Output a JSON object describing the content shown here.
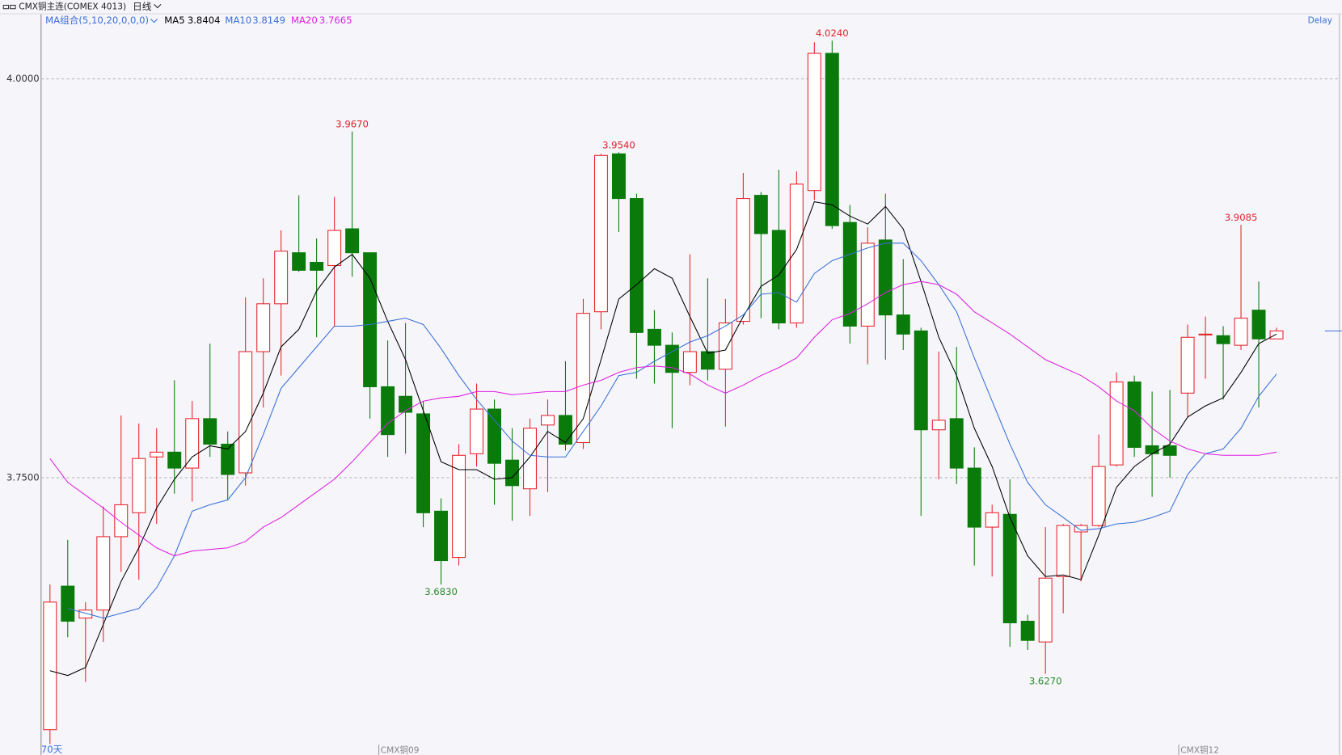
{
  "chart_data": {
    "type": "candlestick",
    "title": "CMX铜主连(COMEX 4013)",
    "period": "日线",
    "status": "Delay",
    "indicator_label": "MA组合(5,10,20,0,0,0)",
    "count_label": "70天",
    "categories": [
      null,
      null,
      null,
      null,
      null,
      null,
      null,
      null,
      null,
      null,
      null,
      null,
      null,
      null,
      null,
      null,
      null,
      null,
      null,
      "CMX铜09",
      null,
      null,
      null,
      null,
      null,
      null,
      null,
      null,
      null,
      null,
      null,
      null,
      null,
      null,
      null,
      null,
      null,
      null,
      null,
      null,
      null,
      null,
      null,
      null,
      null,
      null,
      null,
      null,
      null,
      null,
      null,
      null,
      null,
      null,
      null,
      null,
      null,
      null,
      null,
      null,
      null,
      null,
      null,
      null,
      "CMX铜12",
      null,
      null,
      null,
      null,
      null
    ],
    "open": [
      3.592,
      3.682,
      3.662,
      3.667,
      3.713,
      3.728,
      3.763,
      3.766,
      3.756,
      3.787,
      3.771,
      3.753,
      3.829,
      3.859,
      3.891,
      3.885,
      3.883,
      3.906,
      3.891,
      3.807,
      3.801,
      3.79,
      3.729,
      3.7,
      3.765,
      3.793,
      3.761,
      3.743,
      3.783,
      3.789,
      3.772,
      3.854,
      3.953,
      3.925,
      3.843,
      3.833,
      3.816,
      3.829,
      3.818,
      3.848,
      3.927,
      3.905,
      3.847,
      3.93,
      4.016,
      3.91,
      3.845,
      3.899,
      3.852,
      3.842,
      3.78,
      3.787,
      3.756,
      3.719,
      3.727,
      3.66,
      3.647,
      3.688,
      3.716,
      3.72,
      3.758,
      3.81,
      3.77,
      3.77,
      3.803,
      3.84,
      3.839,
      3.833,
      3.855,
      3.837
    ],
    "high": [
      3.683,
      3.711,
      3.672,
      3.732,
      3.789,
      3.784,
      3.781,
      3.811,
      3.798,
      3.834,
      3.779,
      3.863,
      3.875,
      3.905,
      3.927,
      3.9,
      3.926,
      3.967,
      3.891,
      3.836,
      3.847,
      3.798,
      3.737,
      3.771,
      3.809,
      3.799,
      3.781,
      3.787,
      3.799,
      3.823,
      3.862,
      3.953,
      3.954,
      3.928,
      3.855,
      3.841,
      3.89,
      3.875,
      3.862,
      3.941,
      3.929,
      3.943,
      3.942,
      4.023,
      4.024,
      3.921,
      3.907,
      3.928,
      3.887,
      3.844,
      3.829,
      3.832,
      3.769,
      3.733,
      3.749,
      3.664,
      3.719,
      3.721,
      3.721,
      3.777,
      3.816,
      3.814,
      3.804,
      3.805,
      3.846,
      3.851,
      3.845,
      3.9085,
      3.873,
      3.844
    ],
    "low": [
      3.583,
      3.65,
      3.622,
      3.647,
      3.691,
      3.686,
      3.721,
      3.74,
      3.735,
      3.763,
      3.736,
      3.745,
      3.794,
      3.814,
      3.879,
      3.838,
      3.845,
      3.876,
      3.787,
      3.763,
      3.765,
      3.719,
      3.683,
      3.695,
      3.757,
      3.733,
      3.723,
      3.726,
      3.741,
      3.767,
      3.768,
      3.843,
      3.904,
      3.812,
      3.809,
      3.781,
      3.808,
      3.811,
      3.782,
      3.846,
      3.85,
      3.843,
      3.844,
      3.924,
      3.906,
      3.834,
      3.821,
      3.824,
      3.83,
      3.726,
      3.749,
      3.746,
      3.695,
      3.688,
      3.644,
      3.642,
      3.627,
      3.665,
      3.685,
      3.719,
      3.757,
      3.763,
      3.738,
      3.75,
      3.788,
      3.812,
      3.799,
      3.83,
      3.794,
      3.837
    ],
    "close": [
      3.672,
      3.66,
      3.667,
      3.713,
      3.733,
      3.762,
      3.766,
      3.756,
      3.787,
      3.771,
      3.752,
      3.829,
      3.859,
      3.892,
      3.88,
      3.88,
      3.905,
      3.891,
      3.807,
      3.777,
      3.791,
      3.728,
      3.698,
      3.764,
      3.793,
      3.759,
      3.745,
      3.781,
      3.789,
      3.771,
      3.853,
      3.952,
      3.925,
      3.841,
      3.833,
      3.816,
      3.829,
      3.818,
      3.847,
      3.925,
      3.903,
      3.847,
      3.934,
      4.016,
      3.908,
      3.845,
      3.897,
      3.852,
      3.84,
      3.78,
      3.786,
      3.756,
      3.719,
      3.728,
      3.659,
      3.648,
      3.687,
      3.72,
      3.72,
      3.757,
      3.81,
      3.769,
      3.765,
      3.764,
      3.838,
      3.84,
      3.834,
      3.85,
      3.837,
      3.842
    ],
    "up_color": "#e8232b",
    "down_color": "#0a7a0a",
    "series": [
      {
        "name": "MA5",
        "current": 3.8404,
        "color": "#000000",
        "values": [
          3.629,
          3.626,
          3.631,
          3.658,
          3.685,
          3.706,
          3.731,
          3.749,
          3.763,
          3.77,
          3.768,
          3.779,
          3.803,
          3.832,
          3.843,
          3.867,
          3.882,
          3.89,
          3.875,
          3.848,
          3.824,
          3.792,
          3.76,
          3.755,
          3.755,
          3.749,
          3.75,
          3.763,
          3.779,
          3.772,
          3.787,
          3.824,
          3.862,
          3.871,
          3.881,
          3.875,
          3.851,
          3.828,
          3.83,
          3.851,
          3.87,
          3.877,
          3.893,
          3.923,
          3.921,
          3.914,
          3.909,
          3.92,
          3.906,
          3.873,
          3.838,
          3.814,
          3.781,
          3.757,
          3.725,
          3.701,
          3.688,
          3.689,
          3.686,
          3.714,
          3.744,
          3.757,
          3.765,
          3.771,
          3.788,
          3.795,
          3.8,
          3.816,
          3.834,
          3.84
        ]
      },
      {
        "name": "MA10",
        "current": 3.8149,
        "color": "#3a6fd8",
        "values": [
          null,
          3.668,
          3.665,
          3.662,
          3.665,
          3.668,
          3.681,
          3.701,
          3.729,
          3.733,
          3.736,
          3.75,
          3.777,
          3.806,
          3.819,
          3.832,
          3.845,
          3.845,
          3.846,
          3.848,
          3.85,
          3.846,
          3.831,
          3.814,
          3.799,
          3.786,
          3.773,
          3.764,
          3.763,
          3.763,
          3.779,
          3.795,
          3.814,
          3.816,
          3.823,
          3.829,
          3.835,
          3.839,
          3.845,
          3.852,
          3.865,
          3.866,
          3.86,
          3.878,
          3.886,
          3.89,
          3.894,
          3.897,
          3.897,
          3.886,
          3.871,
          3.854,
          3.825,
          3.798,
          3.771,
          3.747,
          3.733,
          3.725,
          3.717,
          3.718,
          3.721,
          3.722,
          3.725,
          3.729,
          3.752,
          3.765,
          3.768,
          3.781,
          3.801,
          3.815
        ]
      },
      {
        "name": "MA20",
        "current": 3.7665,
        "color": "#e020e0",
        "values": [
          3.762,
          3.747,
          3.739,
          3.731,
          3.722,
          3.714,
          3.706,
          3.701,
          3.704,
          3.705,
          3.706,
          3.71,
          3.719,
          3.725,
          3.733,
          3.741,
          3.749,
          3.76,
          3.772,
          3.784,
          3.792,
          3.798,
          3.8,
          3.801,
          3.804,
          3.804,
          3.802,
          3.803,
          3.804,
          3.804,
          3.808,
          3.811,
          3.816,
          3.819,
          3.82,
          3.819,
          3.815,
          3.808,
          3.803,
          3.808,
          3.814,
          3.819,
          3.825,
          3.838,
          3.849,
          3.853,
          3.859,
          3.866,
          3.871,
          3.873,
          3.871,
          3.865,
          3.854,
          3.847,
          3.84,
          3.832,
          3.824,
          3.819,
          3.814,
          3.807,
          3.798,
          3.792,
          3.781,
          3.773,
          3.768,
          3.765,
          3.764,
          3.764,
          3.764,
          3.766
        ]
      }
    ],
    "annotations": [
      {
        "value": 3.967,
        "label": "3.9670",
        "color": "#e0202a"
      },
      {
        "value": 3.954,
        "label": "3.9540",
        "color": "#e0202a"
      },
      {
        "value": 4.024,
        "label": "4.0240",
        "color": "#e0202a"
      },
      {
        "value": 3.9085,
        "label": "3.9085",
        "color": "#e0202a"
      },
      {
        "value": 3.683,
        "label": "3.6830",
        "color": "#2a8a2a"
      },
      {
        "value": 3.627,
        "label": "3.6270",
        "color": "#2a8a2a"
      }
    ],
    "ylim": [
      3.5762,
      4.0408
    ],
    "yticks": [
      {
        "value": 4,
        "label": "4.0000"
      },
      {
        "value": 3.75,
        "label": "3.7500"
      }
    ],
    "grid": true
  }
}
